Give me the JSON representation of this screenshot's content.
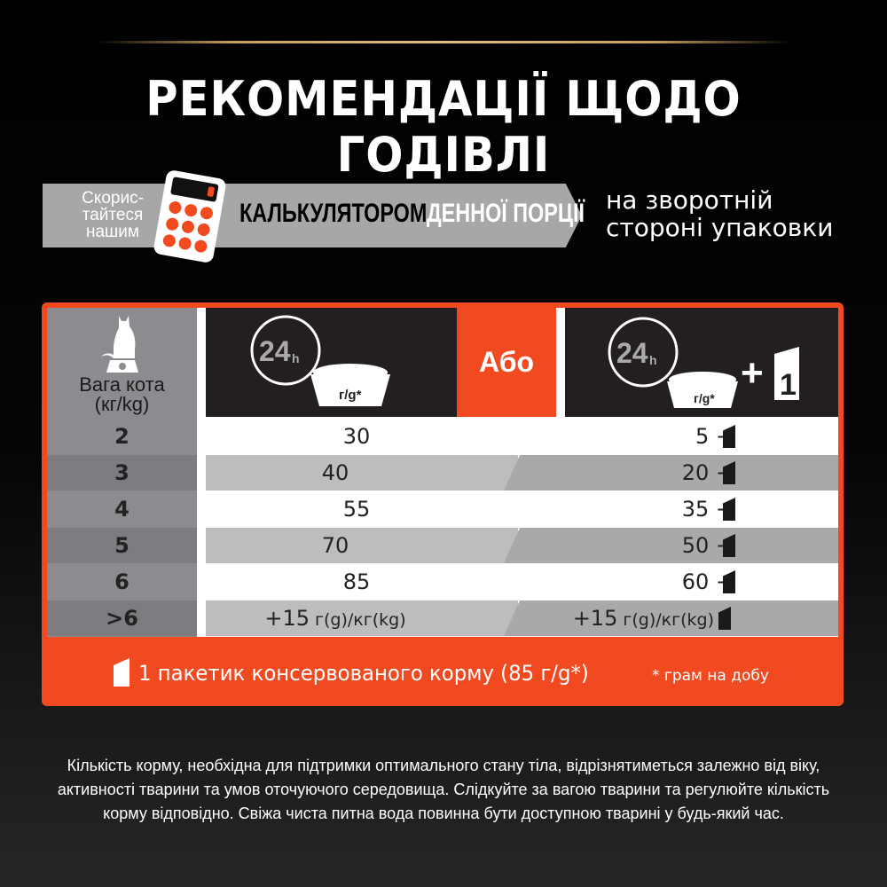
{
  "title": "РЕКОМЕНДАЦІЇ ЩОДО ГОДІВЛІ",
  "banner": {
    "lead": "Скорис-\nтайтеся\nнашим",
    "calculator": "КАЛЬКУЛЯТОРОМ",
    "daily": "ДЕННОЇ ПОРЦІЇ",
    "back": "на зворотній\nстороні упаковки"
  },
  "table": {
    "weight_label": "Вага кота\n(кг/kg)",
    "hours": "24",
    "hours_unit": "h",
    "bowl_unit": "г/g*",
    "or": "Або",
    "plus": "+",
    "pouch_count": "1",
    "rows": [
      {
        "weight": "2",
        "dry": "30",
        "wet": "5 +"
      },
      {
        "weight": "3",
        "dry": "40",
        "wet": "20 +"
      },
      {
        "weight": "4",
        "dry": "55",
        "wet": "35 +"
      },
      {
        "weight": "5",
        "dry": "70",
        "wet": "50 +"
      },
      {
        "weight": "6",
        "dry": "85",
        "wet": "60 +"
      },
      {
        "weight": ">6",
        "dry": "+15",
        "dry_unit": " г(g)/кг(kg)",
        "wet": "+15",
        "wet_unit": " г(g)/кг(kg)"
      }
    ],
    "footer": "1 пакетик консервованого корму (85 г/g*)",
    "footnote": "* грам на добу"
  },
  "note": "Кількість корму, необхідна для підтримки оптимального стану тіла, відрізнятиметься залежно від віку, активності тварини та умов оточуючого середовища. Слідкуйте за вагою тварини та регулюйте кількість корму відповідно. Свіжа чиста питна вода повинна бути доступною тварині у будь-який час.",
  "colors": {
    "accent": "#f24a20",
    "dark": "#231f20",
    "gray": "#a7a7a7",
    "gold": "#c9a05a"
  }
}
